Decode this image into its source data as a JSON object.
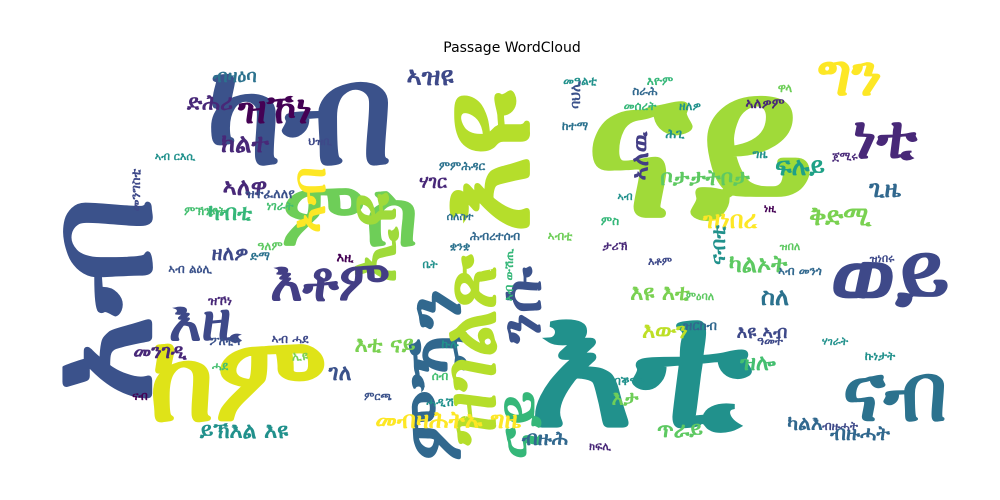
{
  "chart_data": {
    "type": "wordcloud",
    "title": "Passage WordCloud",
    "colormap": "viridis",
    "words": [
      {
        "text": "አብ",
        "weight": 1.0,
        "color": "#3b528b"
      },
      {
        "text": "ናይ",
        "weight": 0.95,
        "color": "#a0da39"
      },
      {
        "text": "እቲ",
        "weight": 0.8,
        "color": "#21918c"
      },
      {
        "text": "እዩ",
        "weight": 0.7,
        "color": "#b5de2b"
      },
      {
        "text": "ከም",
        "weight": 0.65,
        "color": "#dfe318"
      },
      {
        "text": "ካብ",
        "weight": 0.62,
        "color": "#3b528b"
      },
      {
        "text": "ምስ",
        "weight": 0.55,
        "color": "#6ece58"
      },
      {
        "text": "ወይ",
        "weight": 0.52,
        "color": "#3e4989"
      },
      {
        "text": "ናብ",
        "weight": 0.5,
        "color": "#2c728e"
      },
      {
        "text": "ዝኾነ",
        "weight": 0.48,
        "color": "#440154"
      },
      {
        "text": "እዚ",
        "weight": 0.46,
        "color": "#3e4989"
      },
      {
        "text": "ፍሉይ",
        "weight": 0.44,
        "color": "#1fa187"
      },
      {
        "text": "ኢዩ",
        "weight": 0.42,
        "color": "#9fda3a"
      },
      {
        "text": "ነቲ",
        "weight": 0.4,
        "color": "#482878"
      },
      {
        "text": "እቶም",
        "weight": 0.38,
        "color": "#433e85"
      },
      {
        "text": "ምዃን",
        "weight": 0.36,
        "color": "#31688e"
      },
      {
        "text": "ኣብ",
        "weight": 0.34,
        "color": "#fde725"
      },
      {
        "text": "ናይ",
        "weight": 0.32,
        "color": "#35b779"
      },
      {
        "text": "ዝገልጽ",
        "weight": 0.3,
        "color": "#b5de2b"
      },
      {
        "text": "ግን",
        "weight": 0.29,
        "color": "#fde725"
      },
      {
        "text": "ንሱ",
        "weight": 0.28,
        "color": "#3b528b"
      },
      {
        "text": "ድሕሪ",
        "weight": 0.24,
        "color": "#482878"
      },
      {
        "text": "ብዛዕባ",
        "weight": 0.22,
        "color": "#2c728e"
      },
      {
        "text": "ክልተ",
        "weight": 0.23,
        "color": "#482878"
      },
      {
        "text": "ኣለዋ",
        "weight": 0.22,
        "color": "#482878"
      },
      {
        "text": "ዘለዎ",
        "weight": 0.21,
        "color": "#3e4989"
      },
      {
        "text": "ካብቲ",
        "weight": 0.2,
        "color": "#35b779"
      },
      {
        "text": "ኣዝዩ",
        "weight": 0.21,
        "color": "#3e4989"
      },
      {
        "text": "ኣለዉ",
        "weight": 0.23,
        "color": "#433e85"
      },
      {
        "text": "ቦታታትቦታ",
        "weight": 0.2,
        "color": "#5ec962"
      },
      {
        "text": "ዝነበረ",
        "weight": 0.21,
        "color": "#fde725"
      },
      {
        "text": "ናብቲ",
        "weight": 0.2,
        "color": "#21918c"
      },
      {
        "text": "ቅድሚ",
        "weight": 0.21,
        "color": "#7ad151"
      },
      {
        "text": "ጊዜ",
        "weight": 0.21,
        "color": "#31688e"
      },
      {
        "text": "ካልኦት",
        "weight": 0.22,
        "color": "#5ec962"
      },
      {
        "text": "ስለ",
        "weight": 0.2,
        "color": "#2c728e"
      },
      {
        "text": "እዩ ኣብ",
        "weight": 0.17,
        "color": "#3e4989"
      },
      {
        "text": "ዝሎ",
        "weight": 0.18,
        "color": "#44bf70"
      },
      {
        "text": "ካልእ",
        "weight": 0.19,
        "color": "#31688e"
      },
      {
        "text": "ብዙሓት",
        "weight": 0.19,
        "color": "#31688e"
      },
      {
        "text": "መንገዲ",
        "weight": 0.19,
        "color": "#482878"
      },
      {
        "text": "ይኽእል እዩ",
        "weight": 0.2,
        "color": "#21918c"
      },
      {
        "text": "መብዛሕትኡ ግዜ",
        "weight": 0.22,
        "color": "#fde725"
      },
      {
        "text": "ገለ",
        "weight": 0.18,
        "color": "#3b528b"
      },
      {
        "text": "እቲ ናይ",
        "weight": 0.19,
        "color": "#7ad151"
      },
      {
        "text": "እዩ እቲ",
        "weight": 0.18,
        "color": "#7ad151"
      },
      {
        "text": "እታ",
        "weight": 0.18,
        "color": "#6ece58"
      },
      {
        "text": "እውን",
        "weight": 0.17,
        "color": "#bddf26"
      },
      {
        "text": "ጥራይ",
        "weight": 0.17,
        "color": "#5ec962"
      },
      {
        "text": "ብዙሕ",
        "weight": 0.16,
        "color": "#31688e"
      },
      {
        "text": "ሃገር",
        "weight": 0.14,
        "color": "#482878"
      },
      {
        "text": "ዝተፈለለየ",
        "weight": 0.1,
        "color": "#3b528b"
      },
      {
        "text": "ኣብ ርእሲ",
        "weight": 0.1,
        "color": "#21918c"
      },
      {
        "text": "ህዝቢ",
        "weight": 0.1,
        "color": "#3e4989"
      },
      {
        "text": "ነገራት",
        "weight": 0.1,
        "color": "#44bf70"
      },
      {
        "text": "ዓለም",
        "weight": 0.1,
        "color": "#5ec962"
      },
      {
        "text": "ከተማ",
        "weight": 0.1,
        "color": "#2c728e"
      },
      {
        "text": "ክፍሊ",
        "weight": 0.1,
        "color": "#482878"
      },
      {
        "text": "መዓልቲ",
        "weight": 0.09,
        "color": "#21918c"
      },
      {
        "text": "ኩሉ",
        "weight": 0.12,
        "color": "#21918c"
      },
      {
        "text": "ዓመት",
        "weight": 0.1,
        "color": "#3e4989"
      },
      {
        "text": "ስራሕ",
        "weight": 0.1,
        "color": "#31688e"
      },
      {
        "text": "ባህሊ",
        "weight": 0.09,
        "color": "#3b528b"
      },
      {
        "text": "ሕጊ",
        "weight": 0.09,
        "color": "#21918c"
      },
      {
        "text": "ዝርከብ",
        "weight": 0.09,
        "color": "#31688e"
      },
      {
        "text": "መሰረት",
        "weight": 0.09,
        "color": "#35b779"
      },
      {
        "text": "ዋላ",
        "weight": 0.09,
        "color": "#6ece58"
      },
      {
        "text": "ግዜ",
        "weight": 0.08,
        "color": "#21918c"
      },
      {
        "text": "ሰብ",
        "weight": 0.08,
        "color": "#44bf70"
      },
      {
        "text": "እዚ",
        "weight": 0.09,
        "color": "#440154"
      },
      {
        "text": "ኣብ ሓደ",
        "weight": 0.09,
        "color": "#3e4989"
      },
      {
        "text": "ዝኾነ",
        "weight": 0.08,
        "color": "#482878"
      },
      {
        "text": "ኣብ ልዕሊ",
        "weight": 0.08,
        "color": "#3b528b"
      },
      {
        "text": "ዘለዎ",
        "weight": 0.08,
        "color": "#21918c"
      },
      {
        "text": "ኣብቲ",
        "weight": 0.08,
        "color": "#6ece58"
      },
      {
        "text": "ኣብ ውሽጢ",
        "weight": 0.08,
        "color": "#35b779"
      },
      {
        "text": "ኢዩ",
        "weight": 0.07,
        "color": "#7ad151"
      },
      {
        "text": "ብቕዓት",
        "weight": 0.07,
        "color": "#21918c"
      },
      {
        "text": "ኣለዎም",
        "weight": 0.09,
        "color": "#482878"
      },
      {
        "text": "ሓደ",
        "weight": 0.07,
        "color": "#44bf70"
      },
      {
        "text": "እዮም",
        "weight": 0.07,
        "color": "#35b779"
      },
      {
        "text": "ኩነታት",
        "weight": 0.07,
        "color": "#21918c"
      },
      {
        "text": "ፖለቲካ",
        "weight": 0.07,
        "color": "#3b528b"
      },
      {
        "text": "ታሪኽ",
        "weight": 0.07,
        "color": "#482878"
      },
      {
        "text": "ምምሕዳር",
        "weight": 0.07,
        "color": "#2c728e"
      },
      {
        "text": "ኣብ መንጎ",
        "weight": 0.07,
        "color": "#31688e"
      },
      {
        "text": "ናብ",
        "weight": 0.07,
        "color": "#440154"
      },
      {
        "text": "ብዙሓት",
        "weight": 0.07,
        "color": "#3e4989"
      },
      {
        "text": "ድማ",
        "weight": 0.07,
        "color": "#2c728e"
      },
      {
        "text": "ዝበለ",
        "weight": 0.06,
        "color": "#5ec962"
      },
      {
        "text": "ሓዲሽ",
        "weight": 0.07,
        "color": "#21918c"
      },
      {
        "text": "ነዚ",
        "weight": 0.06,
        "color": "#440154"
      },
      {
        "text": "ምኽንያት",
        "weight": 0.06,
        "color": "#44bf70"
      },
      {
        "text": "ሕብረተሰብ",
        "weight": 0.06,
        "color": "#31688e"
      },
      {
        "text": "ቋንቋ",
        "weight": 0.06,
        "color": "#2c728e"
      },
      {
        "text": "ቤት",
        "weight": 0.06,
        "color": "#21918c"
      },
      {
        "text": "ምዕባለ",
        "weight": 0.06,
        "color": "#5ec962"
      },
      {
        "text": "ዝነበሩ",
        "weight": 0.06,
        "color": "#3e4989"
      },
      {
        "text": "ጀሚሩ",
        "weight": 0.06,
        "color": "#482878"
      },
      {
        "text": "ምስ",
        "weight": 0.06,
        "color": "#35b779"
      },
      {
        "text": "እቶም",
        "weight": 0.06,
        "color": "#3e4989"
      },
      {
        "text": "መንግስቲ",
        "weight": 0.08,
        "color": "#3e4989"
      },
      {
        "text": "ሃገራት",
        "weight": 0.06,
        "color": "#21918c"
      },
      {
        "text": "ሰለስተ",
        "weight": 0.06,
        "color": "#2c728e"
      },
      {
        "text": "ምርጫ",
        "weight": 0.06,
        "color": "#3b528b"
      },
      {
        "text": "ኣብ",
        "weight": 0.06,
        "color": "#21918c"
      }
    ]
  }
}
